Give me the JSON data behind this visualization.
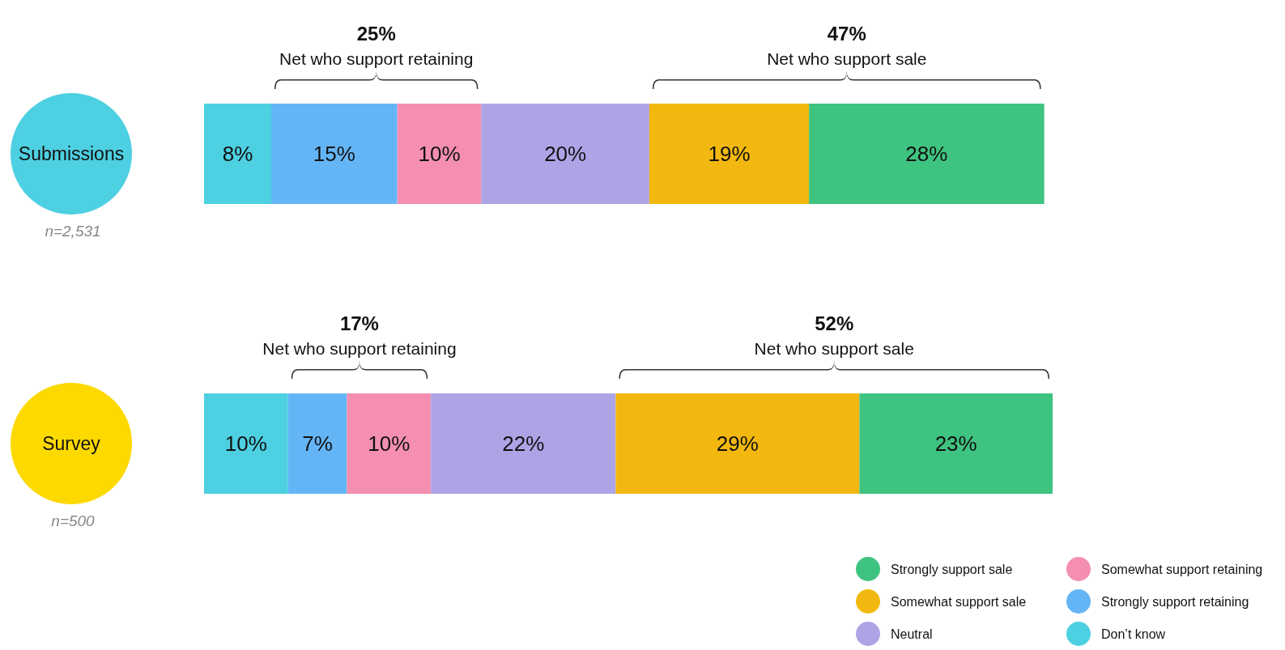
{
  "chart_data": {
    "type": "bar",
    "orientation": "horizontal",
    "stacked": true,
    "legend": "bottom right",
    "categories": [
      "Submissions",
      "Survey"
    ],
    "series": [
      {
        "name": "Don’t know",
        "color": "#4dd0e1",
        "values": [
          8,
          10
        ],
        "value_labels": [
          "8%",
          "10%"
        ]
      },
      {
        "name": "Strongly support retaining",
        "color": "#64b5f6",
        "values": [
          15,
          7
        ],
        "value_labels": [
          "15%",
          "7%"
        ]
      },
      {
        "name": "Somewhat support retaining",
        "color": "#f48fb1",
        "values": [
          10,
          10
        ],
        "value_labels": [
          "10%",
          "10%"
        ]
      },
      {
        "name": "Neutral",
        "color": "#ada4e6",
        "values": [
          20,
          22
        ],
        "value_labels": [
          "20%",
          "22%"
        ]
      },
      {
        "name": "Somewhat support sale",
        "color": "#f2b80f",
        "values": [
          19,
          29
        ],
        "value_labels": [
          "19%",
          "29%"
        ]
      },
      {
        "name": "Strongly support sale",
        "color": "#3fc380",
        "values": [
          28,
          23
        ],
        "value_labels": [
          "28%",
          "23%"
        ]
      }
    ],
    "annotations": [
      "25%",
      "Net who support retaining",
      "47%",
      "Net who support sale",
      "n=2,531",
      "17%",
      "Net who support retaining",
      "52%",
      "Net who support sale",
      "n=500"
    ]
  }
}
